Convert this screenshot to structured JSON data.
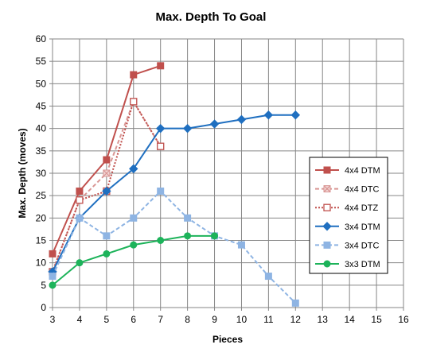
{
  "chart_data": {
    "type": "line",
    "title": "Max. Depth To Goal",
    "xlabel": "Pieces",
    "ylabel": "Max. Depth (moves)",
    "xlim": [
      3,
      16
    ],
    "ylim": [
      0,
      60
    ],
    "x_ticks": [
      3,
      4,
      5,
      6,
      7,
      8,
      9,
      10,
      11,
      12,
      13,
      14,
      15,
      16
    ],
    "y_ticks": [
      0,
      5,
      10,
      15,
      20,
      25,
      30,
      35,
      40,
      45,
      50,
      55,
      60
    ],
    "grid": true,
    "legend_position": "right",
    "series": [
      {
        "name": "4x4 DTM",
        "color": "#c0504d",
        "dash": "solid",
        "marker": "square-filled",
        "x": [
          3,
          4,
          5,
          6,
          7
        ],
        "y": [
          12,
          26,
          33,
          52,
          54
        ]
      },
      {
        "name": "4x4 DTC",
        "color": "#d99694",
        "dash": "dashed",
        "marker": "square-x",
        "x": [
          3,
          4,
          5,
          6,
          7
        ],
        "y": [
          8,
          24,
          30,
          46,
          36
        ]
      },
      {
        "name": "4x4 DTZ",
        "color": "#c0504d",
        "dash": "dotted",
        "marker": "square-open",
        "x": [
          3,
          4,
          5,
          6,
          7
        ],
        "y": [
          8,
          24,
          26,
          46,
          36
        ]
      },
      {
        "name": "3x4 DTM",
        "color": "#1f6fc0",
        "dash": "solid",
        "marker": "diamond",
        "x": [
          3,
          4,
          5,
          6,
          7,
          8,
          9,
          10,
          11,
          12
        ],
        "y": [
          8,
          20,
          26,
          31,
          40,
          40,
          41,
          42,
          43,
          43
        ]
      },
      {
        "name": "3x4 DTC",
        "color": "#8eb4e3",
        "dash": "dashed",
        "marker": "square-light",
        "x": [
          3,
          4,
          5,
          6,
          7,
          8,
          9,
          10,
          11,
          12
        ],
        "y": [
          7,
          20,
          16,
          20,
          26,
          20,
          16,
          14,
          7,
          1
        ]
      },
      {
        "name": "3x3 DTM",
        "color": "#1db35a",
        "dash": "solid",
        "marker": "circle",
        "x": [
          3,
          4,
          5,
          6,
          7,
          8,
          9
        ],
        "y": [
          5,
          10,
          12,
          14,
          15,
          16,
          16
        ]
      }
    ]
  }
}
